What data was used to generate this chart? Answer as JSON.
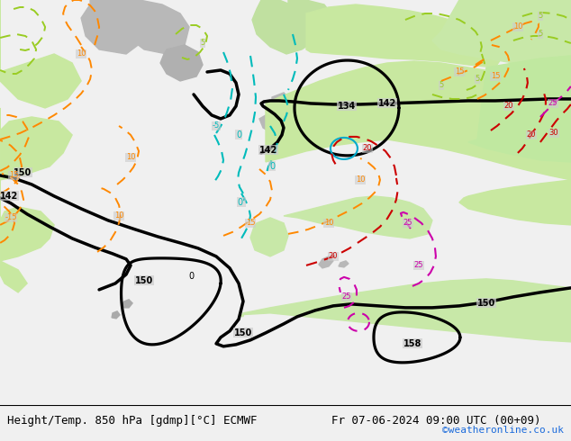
{
  "title_left": "Height/Temp. 850 hPa [gdmp][°C] ECMWF",
  "title_right": "Fr 07-06-2024 09:00 UTC (00+09)",
  "watermark": "©weatheronline.co.uk",
  "watermark_color": "#1a6adb",
  "fig_width": 6.34,
  "fig_height": 4.9,
  "dpi": 100,
  "map_bg": "#cccccc",
  "land_green": "#c8e8a0",
  "land_grey": "#b0b0b0",
  "sea_grey": "#c8c8c8"
}
